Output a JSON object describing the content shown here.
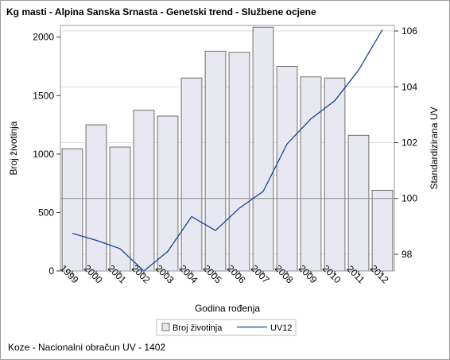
{
  "header": {
    "title": "Kg masti - Alpina Sanska Srnasta - Genetski trend - Službene ocjene"
  },
  "footnote": "Koze - Nacionalni obračun UV - 1402",
  "chart_data": {
    "type": "bar+line",
    "title": "Kg masti - Alpina Sanska Srnasta - Genetski trend - Službene ocjene",
    "xlabel": "Godina rođenja",
    "ylabel": "Broj životinja",
    "y2label": "Standardizirana UV",
    "categories": [
      "1999",
      "2000",
      "2001",
      "2002",
      "2003",
      "2004",
      "2005",
      "2006",
      "2007",
      "2008",
      "2009",
      "2010",
      "2011",
      "2012"
    ],
    "ylim": [
      0,
      2100
    ],
    "yticks": [
      0,
      500,
      1000,
      1500,
      2000
    ],
    "y2lim": [
      97.4,
      106.2
    ],
    "y2ticks": [
      98,
      100,
      102,
      104,
      106
    ],
    "series": [
      {
        "name": "Broj životinja",
        "type": "bar",
        "axis": "left",
        "values": [
          1045,
          1250,
          1060,
          1375,
          1325,
          1650,
          1880,
          1870,
          2085,
          1750,
          1660,
          1650,
          1160,
          690
        ]
      },
      {
        "name": "UV12",
        "type": "line",
        "axis": "right",
        "values": [
          98.75,
          98.5,
          98.2,
          97.4,
          98.1,
          99.35,
          98.85,
          99.65,
          100.25,
          101.95,
          102.85,
          103.5,
          104.6,
          106.05
        ]
      }
    ],
    "reference_lines": [
      {
        "axis": "right",
        "value": 100
      }
    ],
    "legend": {
      "position": "bottom",
      "items": [
        "Broj životinja",
        "UV12"
      ]
    },
    "colors": {
      "bar_fill": "#e8e8f0",
      "bar_stroke": "#6e6e6e",
      "line": "#1f3f9a",
      "grid": "#dddddd",
      "reference": "#9a9a9a"
    }
  }
}
